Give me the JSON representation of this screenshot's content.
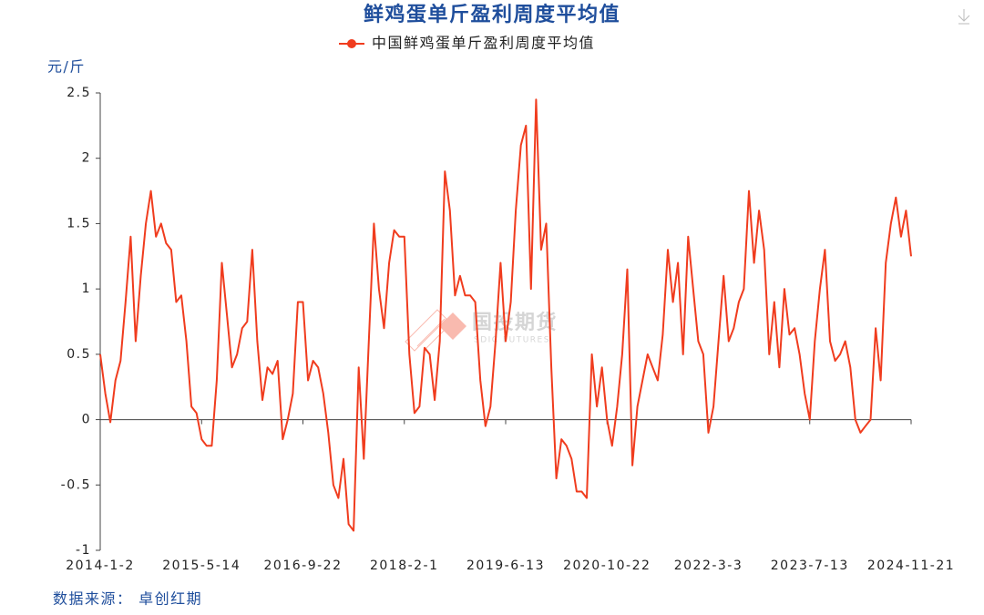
{
  "chart_data": {
    "type": "line",
    "title": "鲜鸡蛋单斤盈利周度平均值",
    "y_unit": "元/斤",
    "source": "数据来源： 卓创红期",
    "watermark": {
      "name": "国投期货",
      "sub": "SDIC FUTURES"
    },
    "legend": "top",
    "ylim": [
      -1,
      2.5
    ],
    "yticks": [
      -1,
      -0.5,
      0,
      0.5,
      1,
      1.5,
      2,
      2.5
    ],
    "categories": [
      "2014-1-2",
      null,
      null,
      null,
      null,
      null,
      null,
      null,
      null,
      null,
      null,
      null,
      null,
      null,
      null,
      null,
      null,
      null,
      null,
      null,
      "2015-5-14",
      null,
      null,
      null,
      null,
      null,
      null,
      null,
      null,
      null,
      null,
      null,
      null,
      null,
      null,
      null,
      null,
      null,
      null,
      null,
      "2016-9-22",
      null,
      null,
      null,
      null,
      null,
      null,
      null,
      null,
      null,
      null,
      null,
      null,
      null,
      null,
      null,
      null,
      null,
      null,
      null,
      "2018-2-1",
      null,
      null,
      null,
      null,
      null,
      null,
      null,
      null,
      null,
      null,
      null,
      null,
      null,
      null,
      null,
      null,
      null,
      null,
      null,
      "2019-6-13",
      null,
      null,
      null,
      null,
      null,
      null,
      null,
      null,
      null,
      null,
      null,
      null,
      null,
      null,
      null,
      null,
      null,
      null,
      null,
      "2020-10-22",
      null,
      null,
      null,
      null,
      null,
      null,
      null,
      null,
      null,
      null,
      null,
      null,
      null,
      null,
      null,
      null,
      null,
      null,
      null,
      "2022-3-3",
      null,
      null,
      null,
      null,
      null,
      null,
      null,
      null,
      null,
      null,
      null,
      null,
      null,
      null,
      null,
      null,
      null,
      null,
      null,
      "2023-7-13",
      null,
      null,
      null,
      null,
      null,
      null,
      null,
      null,
      null,
      null,
      null,
      null,
      null,
      null,
      null,
      null,
      null,
      null,
      null,
      "2024-11-21"
    ],
    "series": [
      {
        "name": "中国鲜鸡蛋单斤盈利周度平均值",
        "color": "#f03c1e",
        "values": [
          0.5,
          0.2,
          -0.02,
          0.3,
          0.45,
          0.9,
          1.4,
          0.6,
          1.1,
          1.5,
          1.75,
          1.4,
          1.5,
          1.35,
          1.3,
          0.9,
          0.95,
          0.6,
          0.1,
          0.05,
          -0.15,
          -0.2,
          -0.2,
          0.3,
          1.2,
          0.8,
          0.4,
          0.5,
          0.7,
          0.75,
          1.3,
          0.6,
          0.15,
          0.4,
          0.35,
          0.45,
          -0.15,
          0.0,
          0.2,
          0.9,
          0.9,
          0.3,
          0.45,
          0.4,
          0.2,
          -0.1,
          -0.5,
          -0.6,
          -0.3,
          -0.8,
          -0.85,
          0.4,
          -0.3,
          0.6,
          1.5,
          1.0,
          0.7,
          1.2,
          1.45,
          1.4,
          1.4,
          0.5,
          0.05,
          0.1,
          0.55,
          0.5,
          0.15,
          0.6,
          1.9,
          1.6,
          0.95,
          1.1,
          0.95,
          0.95,
          0.9,
          0.3,
          -0.05,
          0.1,
          0.6,
          1.2,
          0.6,
          0.9,
          1.6,
          2.1,
          2.25,
          1.0,
          2.45,
          1.3,
          1.5,
          0.4,
          -0.45,
          -0.15,
          -0.2,
          -0.3,
          -0.55,
          -0.55,
          -0.6,
          0.5,
          0.1,
          0.4,
          0.0,
          -0.2,
          0.1,
          0.5,
          1.15,
          -0.35,
          0.1,
          0.3,
          0.5,
          0.4,
          0.3,
          0.65,
          1.3,
          0.9,
          1.2,
          0.5,
          1.4,
          1.0,
          0.6,
          0.5,
          -0.1,
          0.1,
          0.6,
          1.1,
          0.6,
          0.7,
          0.9,
          1.0,
          1.75,
          1.2,
          1.6,
          1.3,
          0.5,
          0.9,
          0.4,
          1.0,
          0.65,
          0.7,
          0.5,
          0.2,
          0.0,
          0.6,
          1.0,
          1.3,
          0.6,
          0.45,
          0.5,
          0.6,
          0.4,
          0.0,
          -0.1,
          -0.05,
          0.0,
          0.7,
          0.3,
          1.2,
          1.5,
          1.7,
          1.4,
          1.6,
          1.25
        ]
      }
    ]
  }
}
